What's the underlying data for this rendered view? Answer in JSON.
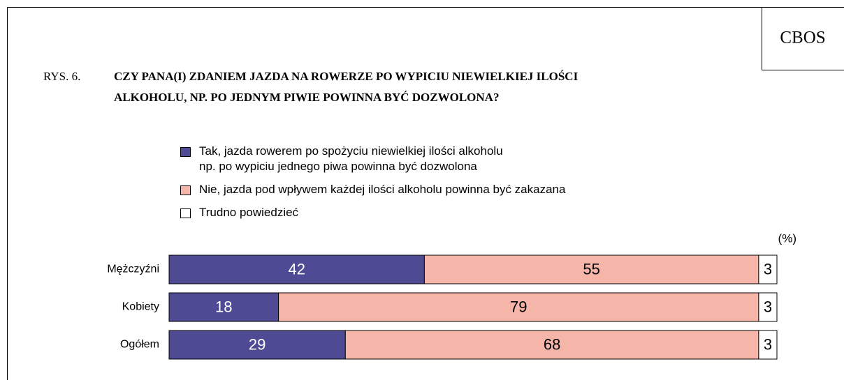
{
  "chart_data": {
    "type": "stacked_bar_horizontal",
    "label": "CBOS",
    "figure_number": "RYS. 6.",
    "title": [
      "CZY PANA(I) ZDANIEM JAZDA NA ROWERZE PO WYPICIU NIEWIELKIEJ ILOŚCI",
      "ALKOHOLU, NP. PO JEDNYM PIWIE POWINNA BYĆ DOZWOLONA?"
    ],
    "unit_label": "(%)",
    "categories": [
      "Mężczyźni",
      "Kobiety",
      "Ogółem"
    ],
    "series": [
      {
        "name": "Tak, jazda rowerem po spożyciu niewielkiej ilości alkoholu\nnp. po wypiciu jednego piwa powinna być dozwolona",
        "color": "#4f4a94",
        "label_color": "#ffffff",
        "values": [
          42,
          18,
          29
        ]
      },
      {
        "name": "Nie, jazda pod wpływem każdej ilości alkoholu powinna być zakazana",
        "color": "#f5b5a8",
        "label_color": "#000000",
        "values": [
          55,
          79,
          68
        ]
      },
      {
        "name": "Trudno powiedzieć",
        "color": "#ffffff",
        "label_color": "#000000",
        "values": [
          3,
          3,
          3
        ]
      }
    ],
    "xlim": [
      0,
      100
    ]
  }
}
